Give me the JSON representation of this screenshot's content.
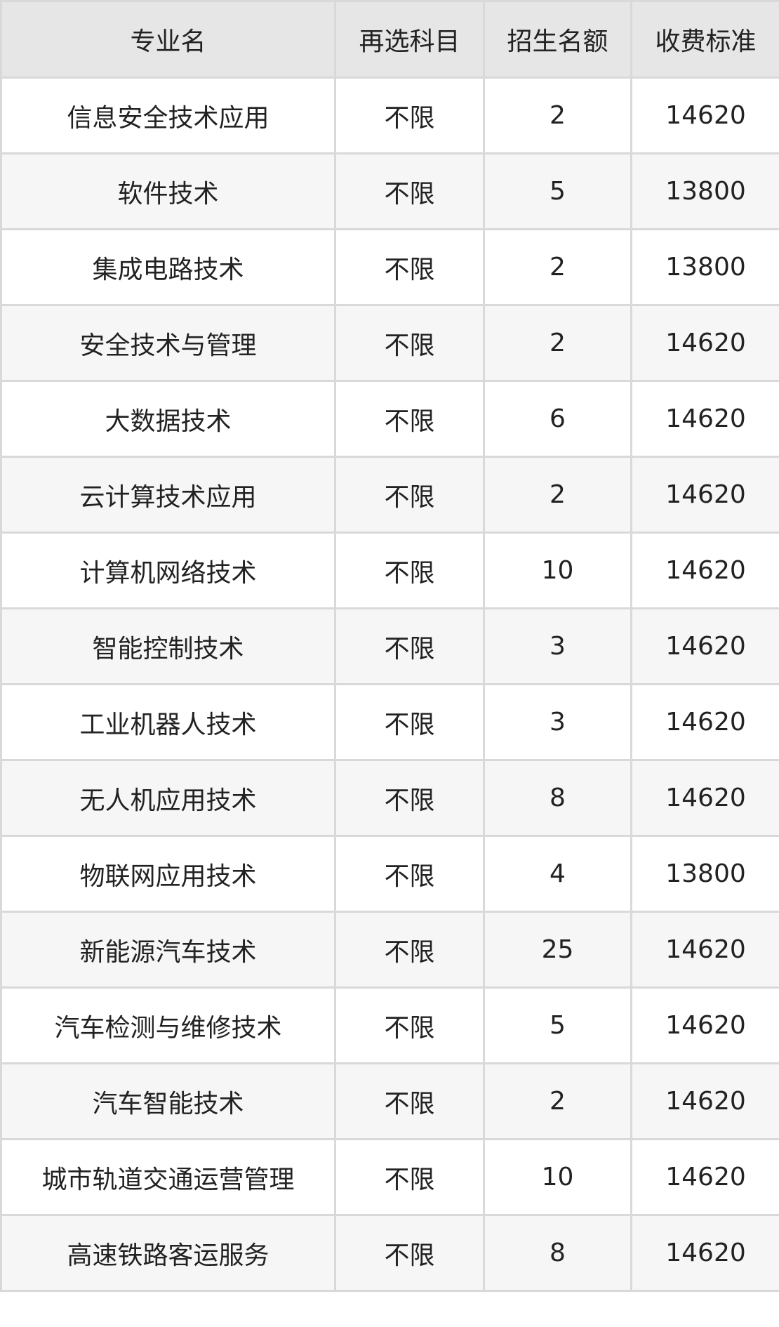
{
  "table": {
    "headers": [
      "专业名",
      "再选科目",
      "招生名额",
      "收费标准"
    ],
    "rows": [
      [
        "信息安全技术应用",
        "不限",
        "2",
        "14620"
      ],
      [
        "软件技术",
        "不限",
        "5",
        "13800"
      ],
      [
        "集成电路技术",
        "不限",
        "2",
        "13800"
      ],
      [
        "安全技术与管理",
        "不限",
        "2",
        "14620"
      ],
      [
        "大数据技术",
        "不限",
        "6",
        "14620"
      ],
      [
        "云计算技术应用",
        "不限",
        "2",
        "14620"
      ],
      [
        "计算机网络技术",
        "不限",
        "10",
        "14620"
      ],
      [
        "智能控制技术",
        "不限",
        "3",
        "14620"
      ],
      [
        "工业机器人技术",
        "不限",
        "3",
        "14620"
      ],
      [
        "无人机应用技术",
        "不限",
        "8",
        "14620"
      ],
      [
        "物联网应用技术",
        "不限",
        "4",
        "13800"
      ],
      [
        "新能源汽车技术",
        "不限",
        "25",
        "14620"
      ],
      [
        "汽车检测与维修技术",
        "不限",
        "5",
        "14620"
      ],
      [
        "汽车智能技术",
        "不限",
        "2",
        "14620"
      ],
      [
        "城市轨道交通运营管理",
        "不限",
        "10",
        "14620"
      ],
      [
        "高速铁路客运服务",
        "不限",
        "8",
        "14620"
      ]
    ]
  }
}
